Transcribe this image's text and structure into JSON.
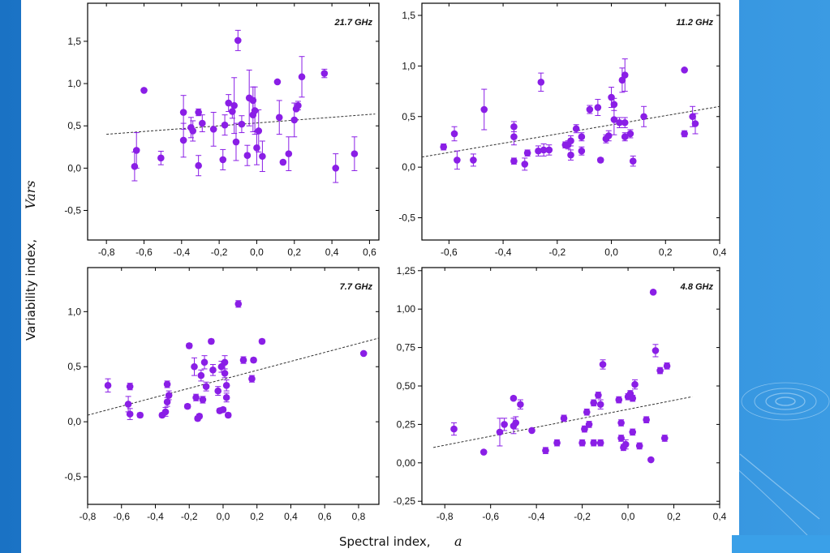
{
  "figure": {
    "ylabel": "Variability index,",
    "ylabel_var": "Vars",
    "xlabel": "Spectral index,",
    "xlabel_var": "a"
  },
  "colors": {
    "point": "#8a1ee6",
    "fit": "#333333",
    "frame": "#000000"
  },
  "decor": [
    "ripple-icon"
  ],
  "chart_data": [
    {
      "type": "scatter",
      "title": "21.7 GHz",
      "xlim": [
        -0.9,
        0.65
      ],
      "ylim": [
        -0.85,
        1.95
      ],
      "xticks": [
        "-0,8",
        "-0,6",
        "-0,4",
        "-0,2",
        "0,0",
        "0,2",
        "0,4",
        "0,6"
      ],
      "xtick_values": [
        -0.8,
        -0.6,
        -0.4,
        -0.2,
        0.0,
        0.2,
        0.4,
        0.6
      ],
      "yticks": [
        "-0,5",
        "0,0",
        "0,5",
        "1,0",
        "1,5"
      ],
      "ytick_values": [
        -0.5,
        0.0,
        0.5,
        1.0,
        1.5
      ],
      "fit": {
        "x": [
          -0.8,
          0.63
        ],
        "y": [
          0.4,
          0.64
        ]
      },
      "points": [
        {
          "x": -0.65,
          "y": 0.02,
          "err": 0.17
        },
        {
          "x": -0.64,
          "y": 0.21,
          "err": 0.21
        },
        {
          "x": -0.6,
          "y": 0.92,
          "err": 0
        },
        {
          "x": -0.51,
          "y": 0.12,
          "err": 0.08
        },
        {
          "x": -0.39,
          "y": 0.66,
          "err": 0.2
        },
        {
          "x": -0.39,
          "y": 0.33,
          "err": 0.2
        },
        {
          "x": -0.35,
          "y": 0.48,
          "err": 0.12
        },
        {
          "x": -0.34,
          "y": 0.44,
          "err": 0.12
        },
        {
          "x": -0.31,
          "y": 0.66,
          "err": 0.04
        },
        {
          "x": -0.31,
          "y": 0.03,
          "err": 0.12
        },
        {
          "x": -0.29,
          "y": 0.53,
          "err": 0.1
        },
        {
          "x": -0.23,
          "y": 0.46,
          "err": 0.2
        },
        {
          "x": -0.18,
          "y": 0.1,
          "err": 0.12
        },
        {
          "x": -0.17,
          "y": 0.51,
          "err": 0.12
        },
        {
          "x": -0.15,
          "y": 0.77,
          "err": 0.1
        },
        {
          "x": -0.13,
          "y": 0.67,
          "err": 0.08
        },
        {
          "x": -0.12,
          "y": 0.74,
          "err": 0.33
        },
        {
          "x": -0.11,
          "y": 0.31,
          "err": 0.22
        },
        {
          "x": -0.1,
          "y": 1.51,
          "err": 0.12
        },
        {
          "x": -0.08,
          "y": 0.52,
          "err": 0.1
        },
        {
          "x": -0.05,
          "y": 0.15,
          "err": 0.12
        },
        {
          "x": -0.04,
          "y": 0.83,
          "err": 0.33
        },
        {
          "x": -0.02,
          "y": 0.8,
          "err": 0.16
        },
        {
          "x": -0.02,
          "y": 0.63,
          "err": 0.2
        },
        {
          "x": -0.01,
          "y": 0.68,
          "err": 0.28
        },
        {
          "x": 0.0,
          "y": 0.24,
          "err": 0.2
        },
        {
          "x": 0.01,
          "y": 0.44,
          "err": 0.25
        },
        {
          "x": 0.03,
          "y": 0.14,
          "err": 0.18
        },
        {
          "x": 0.11,
          "y": 1.02,
          "err": 0
        },
        {
          "x": 0.12,
          "y": 0.6,
          "err": 0.2
        },
        {
          "x": 0.14,
          "y": 0.07,
          "err": 0.02
        },
        {
          "x": 0.17,
          "y": 0.17,
          "err": 0.2
        },
        {
          "x": 0.2,
          "y": 0.57,
          "err": 0.2
        },
        {
          "x": 0.21,
          "y": 0.7,
          "err": 0.02
        },
        {
          "x": 0.22,
          "y": 0.74,
          "err": 0.05
        },
        {
          "x": 0.24,
          "y": 1.08,
          "err": 0.24
        },
        {
          "x": 0.36,
          "y": 1.12,
          "err": 0.05
        },
        {
          "x": 0.42,
          "y": 0.0,
          "err": 0.17
        },
        {
          "x": 0.52,
          "y": 0.17,
          "err": 0.2
        }
      ]
    },
    {
      "type": "scatter",
      "title": "11.2 GHz",
      "xlim": [
        -0.7,
        0.4
      ],
      "ylim": [
        -0.72,
        1.62
      ],
      "xticks": [
        "-0,6",
        "-0,4",
        "-0,2",
        "0,0",
        "0,2",
        "0,4"
      ],
      "xtick_values": [
        -0.6,
        -0.4,
        -0.2,
        0.0,
        0.2,
        0.4
      ],
      "yticks": [
        "-0,5",
        "0,0",
        "0,5",
        "1,0",
        "1,5"
      ],
      "ytick_values": [
        -0.5,
        0.0,
        0.5,
        1.0,
        1.5
      ],
      "fit": {
        "x": [
          -0.7,
          0.4
        ],
        "y": [
          0.1,
          0.6
        ]
      },
      "points": [
        {
          "x": -0.62,
          "y": 0.2,
          "err": 0.03
        },
        {
          "x": -0.58,
          "y": 0.33,
          "err": 0.07
        },
        {
          "x": -0.57,
          "y": 0.07,
          "err": 0.09
        },
        {
          "x": -0.51,
          "y": 0.07,
          "err": 0.06
        },
        {
          "x": -0.47,
          "y": 0.57,
          "err": 0.2
        },
        {
          "x": -0.36,
          "y": 0.3,
          "err": 0.08
        },
        {
          "x": -0.36,
          "y": 0.4,
          "err": 0.05
        },
        {
          "x": -0.36,
          "y": 0.06,
          "err": 0.03
        },
        {
          "x": -0.32,
          "y": 0.03,
          "err": 0.06
        },
        {
          "x": -0.31,
          "y": 0.14,
          "err": 0.03
        },
        {
          "x": -0.27,
          "y": 0.16,
          "err": 0.05
        },
        {
          "x": -0.26,
          "y": 0.84,
          "err": 0.09
        },
        {
          "x": -0.25,
          "y": 0.17,
          "err": 0.06
        },
        {
          "x": -0.23,
          "y": 0.17,
          "err": 0.05
        },
        {
          "x": -0.17,
          "y": 0.22,
          "err": 0.03
        },
        {
          "x": -0.16,
          "y": 0.22,
          "err": 0.04
        },
        {
          "x": -0.15,
          "y": 0.26,
          "err": 0.05
        },
        {
          "x": -0.15,
          "y": 0.12,
          "err": 0.05
        },
        {
          "x": -0.13,
          "y": 0.38,
          "err": 0.04
        },
        {
          "x": -0.11,
          "y": 0.16,
          "err": 0.04
        },
        {
          "x": -0.11,
          "y": 0.3,
          "err": 0.04
        },
        {
          "x": -0.08,
          "y": 0.57,
          "err": 0.04
        },
        {
          "x": -0.05,
          "y": 0.59,
          "err": 0.08
        },
        {
          "x": -0.04,
          "y": 0.07,
          "err": 0.02
        },
        {
          "x": -0.02,
          "y": 0.28,
          "err": 0.04
        },
        {
          "x": -0.01,
          "y": 0.31,
          "err": 0.05
        },
        {
          "x": 0.0,
          "y": 0.69,
          "err": 0.1
        },
        {
          "x": 0.01,
          "y": 0.62,
          "err": 0.06
        },
        {
          "x": 0.01,
          "y": 0.47,
          "err": 0.15
        },
        {
          "x": 0.03,
          "y": 0.44,
          "err": 0.05
        },
        {
          "x": 0.04,
          "y": 0.86,
          "err": 0.12
        },
        {
          "x": 0.05,
          "y": 0.91,
          "err": 0.16
        },
        {
          "x": 0.05,
          "y": 0.44,
          "err": 0.05
        },
        {
          "x": 0.05,
          "y": 0.3,
          "err": 0.04
        },
        {
          "x": 0.07,
          "y": 0.33,
          "err": 0.04
        },
        {
          "x": 0.08,
          "y": 0.06,
          "err": 0.05
        },
        {
          "x": 0.12,
          "y": 0.5,
          "err": 0.1
        },
        {
          "x": 0.27,
          "y": 0.96,
          "err": 0
        },
        {
          "x": 0.27,
          "y": 0.33,
          "err": 0.03
        },
        {
          "x": 0.3,
          "y": 0.5,
          "err": 0.1
        },
        {
          "x": 0.31,
          "y": 0.43,
          "err": 0.1
        }
      ]
    },
    {
      "type": "scatter",
      "title": "7.7 GHz",
      "xlim": [
        -0.8,
        0.92
      ],
      "ylim": [
        -0.75,
        1.4
      ],
      "xticks": [
        "-0,8",
        "-0,6",
        "-0,4",
        "-0,2",
        "0,0",
        "0,2",
        "0,4",
        "0,6",
        "0,8"
      ],
      "xtick_values": [
        -0.8,
        -0.6,
        -0.4,
        -0.2,
        0.0,
        0.2,
        0.4,
        0.6,
        0.8
      ],
      "yticks": [
        "-0,5",
        "0,0",
        "0,5",
        "1,0"
      ],
      "ytick_values": [
        -0.5,
        0.0,
        0.5,
        1.0
      ],
      "fit": {
        "x": [
          -0.8,
          0.92
        ],
        "y": [
          0.06,
          0.76
        ]
      },
      "points": [
        {
          "x": -0.68,
          "y": 0.33,
          "err": 0.06
        },
        {
          "x": -0.56,
          "y": 0.16,
          "err": 0.07
        },
        {
          "x": -0.55,
          "y": 0.32,
          "err": 0.03
        },
        {
          "x": -0.55,
          "y": 0.07,
          "err": 0.05
        },
        {
          "x": -0.49,
          "y": 0.06,
          "err": 0.02
        },
        {
          "x": -0.36,
          "y": 0.06,
          "err": 0.02
        },
        {
          "x": -0.34,
          "y": 0.09,
          "err": 0.04
        },
        {
          "x": -0.33,
          "y": 0.18,
          "err": 0.04
        },
        {
          "x": -0.33,
          "y": 0.34,
          "err": 0.03
        },
        {
          "x": -0.32,
          "y": 0.24,
          "err": 0.04
        },
        {
          "x": -0.21,
          "y": 0.14,
          "err": 0.02
        },
        {
          "x": -0.2,
          "y": 0.69,
          "err": 0.02
        },
        {
          "x": -0.17,
          "y": 0.5,
          "err": 0.08
        },
        {
          "x": -0.16,
          "y": 0.22,
          "err": 0.03
        },
        {
          "x": -0.15,
          "y": 0.03,
          "err": 0.02
        },
        {
          "x": -0.14,
          "y": 0.05,
          "err": 0.02
        },
        {
          "x": -0.13,
          "y": 0.42,
          "err": 0.05
        },
        {
          "x": -0.12,
          "y": 0.2,
          "err": 0.03
        },
        {
          "x": -0.1,
          "y": 0.32,
          "err": 0.04
        },
        {
          "x": -0.11,
          "y": 0.54,
          "err": 0.06
        },
        {
          "x": -0.07,
          "y": 0.73,
          "err": 0.02
        },
        {
          "x": -0.06,
          "y": 0.47,
          "err": 0.05
        },
        {
          "x": -0.03,
          "y": 0.28,
          "err": 0.04
        },
        {
          "x": -0.02,
          "y": 0.1,
          "err": 0.02
        },
        {
          "x": -0.01,
          "y": 0.5,
          "err": 0.05
        },
        {
          "x": 0.0,
          "y": 0.11,
          "err": 0.02
        },
        {
          "x": 0.01,
          "y": 0.54,
          "err": 0.06
        },
        {
          "x": 0.01,
          "y": 0.44,
          "err": 0.04
        },
        {
          "x": 0.02,
          "y": 0.22,
          "err": 0.04
        },
        {
          "x": 0.02,
          "y": 0.33,
          "err": 0.05
        },
        {
          "x": 0.03,
          "y": 0.06,
          "err": 0.02
        },
        {
          "x": 0.09,
          "y": 1.07,
          "err": 0.03
        },
        {
          "x": 0.12,
          "y": 0.56,
          "err": 0.03
        },
        {
          "x": 0.17,
          "y": 0.39,
          "err": 0.03
        },
        {
          "x": 0.18,
          "y": 0.56,
          "err": 0.02
        },
        {
          "x": 0.23,
          "y": 0.73,
          "err": 0.02
        },
        {
          "x": 0.83,
          "y": 0.62,
          "err": 0
        }
      ]
    },
    {
      "type": "scatter",
      "title": "4.8 GHz",
      "xlim": [
        -0.9,
        0.4
      ],
      "ylim": [
        -0.27,
        1.27
      ],
      "xticks": [
        "-0,8",
        "-0,6",
        "-0,4",
        "-0,2",
        "0,0",
        "0,2",
        "0,4"
      ],
      "xtick_values": [
        -0.8,
        -0.6,
        -0.4,
        -0.2,
        0.0,
        0.2,
        0.4
      ],
      "yticks": [
        "-0,25",
        "0,00",
        "0,25",
        "0,50",
        "0,75",
        "1,00",
        "1,25"
      ],
      "ytick_values": [
        -0.25,
        0.0,
        0.25,
        0.5,
        0.75,
        1.0,
        1.25
      ],
      "fit": {
        "x": [
          -0.85,
          0.28
        ],
        "y": [
          0.1,
          0.43
        ]
      },
      "points": [
        {
          "x": -0.76,
          "y": 0.22,
          "err": 0.04
        },
        {
          "x": -0.63,
          "y": 0.07,
          "err": 0.01
        },
        {
          "x": -0.56,
          "y": 0.2,
          "err": 0.09
        },
        {
          "x": -0.54,
          "y": 0.25,
          "err": 0.04
        },
        {
          "x": -0.5,
          "y": 0.42,
          "err": 0.01
        },
        {
          "x": -0.5,
          "y": 0.24,
          "err": 0.05
        },
        {
          "x": -0.49,
          "y": 0.26,
          "err": 0.04
        },
        {
          "x": -0.47,
          "y": 0.38,
          "err": 0.03
        },
        {
          "x": -0.42,
          "y": 0.21,
          "err": 0.01
        },
        {
          "x": -0.36,
          "y": 0.08,
          "err": 0.02
        },
        {
          "x": -0.31,
          "y": 0.13,
          "err": 0.02
        },
        {
          "x": -0.28,
          "y": 0.29,
          "err": 0.02
        },
        {
          "x": -0.2,
          "y": 0.13,
          "err": 0.02
        },
        {
          "x": -0.19,
          "y": 0.22,
          "err": 0.02
        },
        {
          "x": -0.18,
          "y": 0.33,
          "err": 0.02
        },
        {
          "x": -0.17,
          "y": 0.25,
          "err": 0.02
        },
        {
          "x": -0.15,
          "y": 0.39,
          "err": 0.02
        },
        {
          "x": -0.15,
          "y": 0.13,
          "err": 0.02
        },
        {
          "x": -0.13,
          "y": 0.44,
          "err": 0.02
        },
        {
          "x": -0.12,
          "y": 0.13,
          "err": 0.02
        },
        {
          "x": -0.12,
          "y": 0.38,
          "err": 0.03
        },
        {
          "x": -0.11,
          "y": 0.64,
          "err": 0.03
        },
        {
          "x": -0.04,
          "y": 0.41,
          "err": 0.02
        },
        {
          "x": -0.03,
          "y": 0.16,
          "err": 0.02
        },
        {
          "x": -0.03,
          "y": 0.26,
          "err": 0.02
        },
        {
          "x": -0.02,
          "y": 0.1,
          "err": 0.02
        },
        {
          "x": -0.01,
          "y": 0.12,
          "err": 0.03
        },
        {
          "x": 0.0,
          "y": 0.43,
          "err": 0.02
        },
        {
          "x": 0.01,
          "y": 0.45,
          "err": 0.02
        },
        {
          "x": 0.02,
          "y": 0.2,
          "err": 0.02
        },
        {
          "x": 0.02,
          "y": 0.42,
          "err": 0.02
        },
        {
          "x": 0.03,
          "y": 0.51,
          "err": 0.03
        },
        {
          "x": 0.05,
          "y": 0.11,
          "err": 0.02
        },
        {
          "x": 0.08,
          "y": 0.28,
          "err": 0.02
        },
        {
          "x": 0.1,
          "y": 0.02,
          "err": 0.01
        },
        {
          "x": 0.11,
          "y": 1.11,
          "err": 0
        },
        {
          "x": 0.12,
          "y": 0.73,
          "err": 0.04
        },
        {
          "x": 0.14,
          "y": 0.6,
          "err": 0.02
        },
        {
          "x": 0.16,
          "y": 0.16,
          "err": 0.02
        },
        {
          "x": 0.17,
          "y": 0.63,
          "err": 0.02
        }
      ]
    }
  ]
}
